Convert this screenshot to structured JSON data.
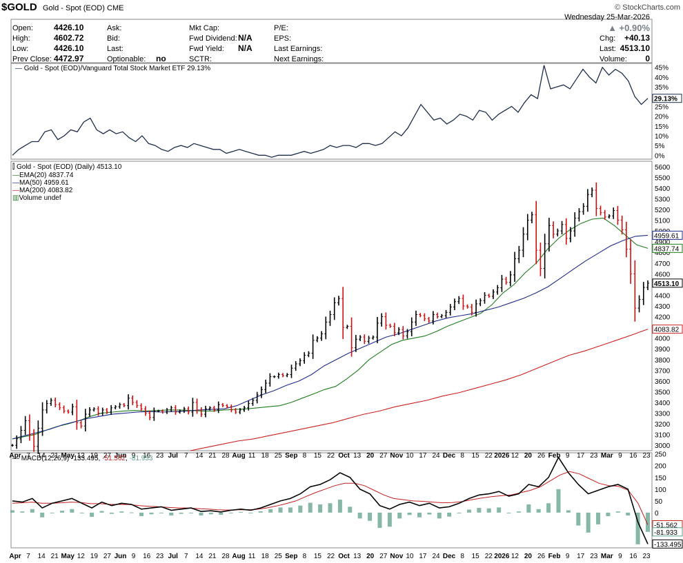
{
  "header": {
    "symbol": "$GOLD",
    "name": "Gold - Spot (EOD)",
    "exchange": "CME",
    "brand": "© StockCharts.com",
    "date_line": "Wednesday  25-Mar-2026",
    "change_pct": "+0.90%",
    "fields": {
      "open_label": "Open:",
      "open": "4426.10",
      "high_label": "High:",
      "high": "4602.72",
      "low_label": "Low:",
      "low": "4426.10",
      "prev_label": "Prev Close:",
      "prev": "4472.97",
      "ask_label": "Ask:",
      "bid_label": "Bid:",
      "last_label": "Last:",
      "optionable_label": "Optionable:",
      "optionable": "no",
      "mktcap_label": "Mkt Cap:",
      "fwddiv_label": "Fwd Dividend:",
      "fwddiv": "N/A",
      "fwdyield_label": "Fwd Yield:",
      "fwdyield": "N/A",
      "sctr_label": "SCTR:",
      "pe_label": "P/E:",
      "eps_label": "EPS:",
      "lastearn_label": "Last Earnings:",
      "nextearn_label": "Next Earnings:",
      "chg_label": "Chg:",
      "chg": "+40.13",
      "last2_label": "Last:",
      "last2": "4513.10",
      "volume_label": "Volume:",
      "volume": "0"
    }
  },
  "chart_data": [
    {
      "type": "line",
      "title": "Gold - Spot (EOD)/Vanguard Total Stock Market ETF 29.13%",
      "yticks": [
        "0%",
        "5%",
        "10%",
        "15%",
        "20%",
        "25%",
        "30%",
        "35%",
        "40%",
        "45%"
      ],
      "ylim": [
        -2,
        47
      ],
      "last_label": "29.13%",
      "series": [
        {
          "name": "Gold - Spot (EOD)/Vanguard Total Stock Market ETF",
          "values": [
            0,
            3,
            5,
            7,
            7,
            12,
            13,
            8,
            10,
            13,
            12,
            17,
            19,
            13,
            11,
            13,
            11,
            12,
            9,
            7,
            10,
            6,
            5,
            3,
            2,
            4,
            5,
            4,
            6,
            5,
            4,
            3,
            3,
            1,
            2,
            3,
            2,
            1,
            0,
            0,
            -1,
            0,
            0,
            0,
            1,
            2,
            1,
            2,
            3,
            5,
            4,
            5,
            5,
            4,
            6,
            6,
            5,
            6,
            9,
            12,
            10,
            14,
            20,
            26,
            22,
            18,
            19,
            16,
            18,
            21,
            20,
            18,
            23,
            22,
            18,
            21,
            23,
            25,
            22,
            27,
            31,
            29,
            46,
            34,
            35,
            36,
            34,
            39,
            44,
            40,
            37,
            45,
            41,
            44,
            42,
            38,
            30,
            26,
            29.13
          ],
          "color": "#1c2c4a"
        }
      ]
    },
    {
      "type": "ohlc",
      "title": "Gold - Spot (EOD) (Daily) 4513.10",
      "ylim": [
        2950,
        5650
      ],
      "yticks": [
        3000,
        3100,
        3200,
        3300,
        3400,
        3500,
        3600,
        3700,
        3800,
        3900,
        4000,
        4100,
        4200,
        4300,
        4400,
        4500,
        4600,
        4700,
        4800,
        4900,
        5000,
        5100,
        5200,
        5300,
        5400,
        5500,
        5600
      ],
      "x_labels": [
        "Apr",
        "7",
        "14",
        "21",
        "May",
        "12",
        "19",
        "27",
        "Jun",
        "9",
        "16",
        "23",
        "Jul",
        "7",
        "14",
        "21",
        "28",
        "Aug",
        "11",
        "18",
        "25",
        "Sep",
        "8",
        "15",
        "22",
        "Oct",
        "13",
        "20",
        "27",
        "Nov",
        "10",
        "17",
        "24",
        "Dec",
        "8",
        "15",
        "22",
        "2026",
        "12",
        "20",
        "26",
        "Feb",
        "9",
        "17",
        "23",
        "Mar",
        "9",
        "16",
        "23"
      ],
      "last_price": "4513.10",
      "close": [
        3000,
        3060,
        3140,
        3230,
        3100,
        2990,
        3160,
        3330,
        3390,
        3420,
        3380,
        3350,
        3320,
        3310,
        3360,
        3210,
        3180,
        3290,
        3330,
        3340,
        3300,
        3330,
        3310,
        3350,
        3360,
        3380,
        3370,
        3440,
        3400,
        3370,
        3340,
        3300,
        3260,
        3320,
        3320,
        3310,
        3330,
        3350,
        3310,
        3320,
        3340,
        3310,
        3400,
        3330,
        3290,
        3340,
        3350,
        3330,
        3380,
        3370,
        3360,
        3330,
        3310,
        3330,
        3350,
        3390,
        3420,
        3470,
        3520,
        3580,
        3640,
        3640,
        3660,
        3650,
        3660,
        3720,
        3760,
        3790,
        3840,
        3860,
        3980,
        4000,
        4040,
        4150,
        4220,
        4330,
        4370,
        4100,
        4110,
        3910,
        3990,
        4010,
        3970,
        4000,
        4010,
        4140,
        4200,
        4120,
        4110,
        4050,
        4080,
        4020,
        4060,
        4150,
        4220,
        4210,
        4180,
        4160,
        4220,
        4200,
        4210,
        4240,
        4290,
        4340,
        4370,
        4300,
        4290,
        4240,
        4320,
        4350,
        4400,
        4390,
        4430,
        4470,
        4550,
        4520,
        4590,
        4740,
        4820,
        4970,
        5100,
        5150,
        4820,
        4650,
        4880,
        5050,
        4970,
        5000,
        5060,
        4930,
        5000,
        5120,
        5180,
        5230,
        5340,
        5380,
        5210,
        5170,
        5130,
        5140,
        5190,
        5100,
        5010,
        4830,
        4600,
        4280,
        4360,
        4473,
        4513.1
      ],
      "series": [
        {
          "name": "EMA(20)",
          "value": "4837.74",
          "color": "#1e7d1e",
          "values": [
            3060,
            3080,
            3100,
            3140,
            3175,
            3200,
            3230,
            3270,
            3300,
            3310,
            3320,
            3325,
            3320,
            3325,
            3330,
            3330,
            3325,
            3320,
            3320,
            3330,
            3335,
            3340,
            3350,
            3360,
            3370,
            3400,
            3440,
            3480,
            3520,
            3550,
            3620,
            3700,
            3800,
            3870,
            3940,
            3980,
            4000,
            4020,
            4060,
            4110,
            4150,
            4190,
            4230,
            4310,
            4420,
            4500,
            4610,
            4700,
            4830,
            4930,
            5010,
            5070,
            5110,
            5120,
            5050,
            4960,
            4870,
            4837.74
          ]
        },
        {
          "name": "MA(50)",
          "value": "4959.61",
          "color": "#1e2a8a",
          "values": [
            3060,
            3090,
            3120,
            3150,
            3190,
            3220,
            3250,
            3270,
            3290,
            3300,
            3310,
            3315,
            3310,
            3315,
            3320,
            3330,
            3335,
            3340,
            3370,
            3420,
            3470,
            3510,
            3560,
            3600,
            3660,
            3740,
            3800,
            3860,
            3910,
            3960,
            4010,
            4040,
            4080,
            4120,
            4160,
            4190,
            4210,
            4230,
            4260,
            4290,
            4330,
            4370,
            4420,
            4480,
            4560,
            4640,
            4720,
            4790,
            4860,
            4910,
            4950,
            4959.61
          ]
        },
        {
          "name": "MA(200)",
          "value": "4083.82",
          "color": "#cc1f1f",
          "values": [
            2950,
            2980,
            3010,
            3040,
            3060,
            3090,
            3120,
            3150,
            3180,
            3210,
            3250,
            3290,
            3320,
            3360,
            3390,
            3420,
            3460,
            3490,
            3530,
            3570,
            3610,
            3660,
            3720,
            3780,
            3840,
            3880,
            3930,
            3980,
            4030,
            4083.82
          ]
        },
        {
          "name": "Volume undef",
          "value": "",
          "color": "#2e7d32",
          "values": []
        }
      ]
    },
    {
      "type": "line",
      "title": "MACD(12,26,9)",
      "macd_values": "-133.495, -51.562, -81.933",
      "ylim": [
        -150,
        255
      ],
      "yticks": [
        0,
        50,
        100,
        150,
        200,
        250
      ],
      "series": [
        {
          "name": "MACD",
          "value": "-133.495",
          "color": "#000000",
          "values": [
            50,
            45,
            60,
            20,
            40,
            50,
            60,
            40,
            20,
            45,
            30,
            40,
            35,
            15,
            20,
            25,
            10,
            15,
            20,
            5,
            8,
            3,
            10,
            15,
            10,
            20,
            35,
            50,
            60,
            80,
            110,
            120,
            140,
            170,
            150,
            100,
            80,
            30,
            15,
            35,
            45,
            30,
            40,
            20,
            25,
            40,
            60,
            75,
            80,
            90,
            70,
            80,
            120,
            110,
            150,
            235,
            170,
            120,
            80,
            95,
            110,
            120,
            100,
            -40,
            -133.495
          ]
        },
        {
          "name": "Signal",
          "value": "-51.562",
          "color": "#c41e1e",
          "values": [
            40,
            42,
            45,
            40,
            40,
            42,
            45,
            43,
            38,
            38,
            35,
            35,
            34,
            30,
            27,
            25,
            22,
            20,
            20,
            17,
            15,
            12,
            11,
            12,
            12,
            14,
            20,
            28,
            38,
            50,
            68,
            85,
            100,
            115,
            125,
            125,
            115,
            95,
            75,
            60,
            55,
            50,
            48,
            45,
            42,
            43,
            47,
            55,
            62,
            68,
            72,
            75,
            85,
            95,
            110,
            135,
            160,
            175,
            165,
            145,
            125,
            115,
            112,
            95,
            40,
            -51.562
          ]
        },
        {
          "name": "Histogram",
          "value": "-81.933",
          "color": "#5f9f88",
          "values": [
            10,
            5,
            15,
            -20,
            0,
            8,
            15,
            -3,
            -18,
            7,
            -5,
            5,
            1,
            -15,
            -7,
            0,
            -12,
            -5,
            0,
            -12,
            -7,
            -9,
            -1,
            3,
            -2,
            6,
            15,
            22,
            22,
            30,
            42,
            35,
            40,
            55,
            25,
            -25,
            -35,
            -65,
            -60,
            -25,
            -10,
            -20,
            -8,
            -25,
            -17,
            -3,
            13,
            20,
            18,
            22,
            -2,
            5,
            35,
            15,
            40,
            100,
            10,
            -55,
            -85,
            -50,
            -15,
            5,
            -12,
            -135,
            -81.933
          ]
        }
      ]
    }
  ]
}
